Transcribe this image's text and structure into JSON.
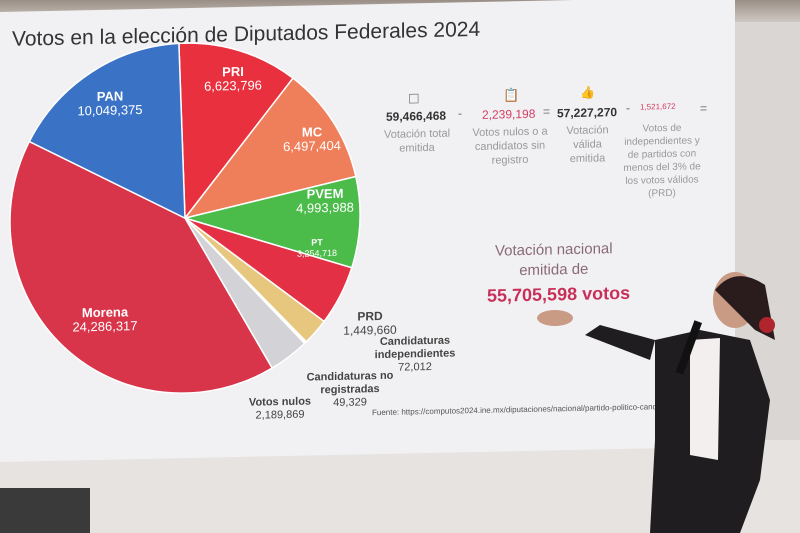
{
  "chart_data": {
    "type": "pie",
    "title": "Votos en la elección de Diputados Federales 2024",
    "slices": [
      {
        "label": "PRI",
        "value": 6623796,
        "value_text": "6,623,796",
        "color": "#e8303f"
      },
      {
        "label": "MC",
        "value": 6497404,
        "value_text": "6,497,404",
        "color": "#ee7f5a"
      },
      {
        "label": "PVEM",
        "value": 4993988,
        "value_text": "4,993,988",
        "color": "#4bbb4a"
      },
      {
        "label": "PT",
        "value": 3254718,
        "value_text": "3,254,718",
        "color": "#e43044"
      },
      {
        "label": "PRD",
        "value": 1449660,
        "value_text": "1,449,660",
        "color": "#e6c77d"
      },
      {
        "label": "Candidaturas independientes",
        "value": 72012,
        "value_text": "72,012",
        "color": "#b9b9bd"
      },
      {
        "label": "Candidaturas no registradas",
        "value": 49329,
        "value_text": "49,329",
        "color": "#c6c6ca"
      },
      {
        "label": "Votos nulos",
        "value": 2189869,
        "value_text": "2,189,869",
        "color": "#d3d3d7"
      },
      {
        "label": "Morena",
        "value": 24286317,
        "value_text": "24,286,317",
        "color": "#d8344a"
      },
      {
        "label": "PAN",
        "value": 10049375,
        "value_text": "10,049,375",
        "color": "#3a73c6"
      }
    ]
  },
  "equation": {
    "total": {
      "value": "59,466,468",
      "label": "Votación total emitida",
      "icon": "ballot-box-icon"
    },
    "minus1": "-",
    "nulos": {
      "value": "2,239,198",
      "label": "Votos nulos o a candidatos sin registro",
      "icon": "clipboard-x-icon"
    },
    "equals1": "=",
    "valida": {
      "value": "57,227,270",
      "label": "Votación válida emitida",
      "icon": "thumbs-up-icon"
    },
    "minus2": "-",
    "menos": {
      "value": "1,521,672",
      "label": "Votos de independientes y de partidos con menos del 3% de los votos válidos (PRD)",
      "icon": "hand-icon"
    },
    "equals2": "="
  },
  "result": {
    "line1": "Votación nacional",
    "line2": "emitida de",
    "value": "55,705,598 votos"
  },
  "source": "Fuente: https://computos2024.ine.mx/diputaciones/nacional/partido-politico-candid"
}
